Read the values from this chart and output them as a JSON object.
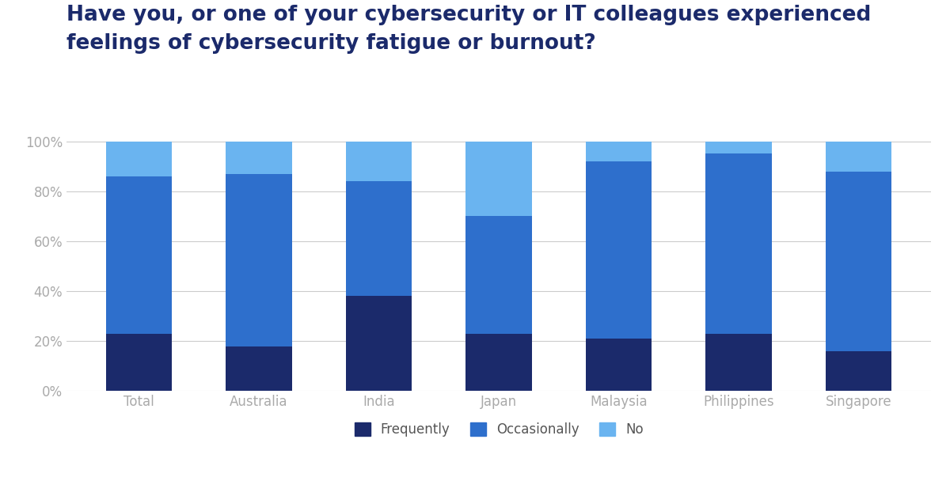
{
  "categories": [
    "Total",
    "Australia",
    "India",
    "Japan",
    "Malaysia",
    "Philippines",
    "Singapore"
  ],
  "frequently": [
    23,
    18,
    38,
    23,
    21,
    23,
    16
  ],
  "occasionally": [
    63,
    69,
    46,
    47,
    71,
    72,
    72
  ],
  "no": [
    14,
    13,
    16,
    30,
    8,
    5,
    12
  ],
  "color_frequently": "#1b2a6b",
  "color_occasionally": "#2e6fcc",
  "color_no": "#6ab4f0",
  "title_line1": "Have you, or one of your cybersecurity or IT colleagues experienced",
  "title_line2": "feelings of cybersecurity fatigue or burnout?",
  "title_color": "#1b2a6b",
  "title_fontsize": 19,
  "ylabel_ticks": [
    "0%",
    "20%",
    "40%",
    "60%",
    "80%",
    "100%"
  ],
  "ytick_vals": [
    0,
    20,
    40,
    60,
    80,
    100
  ],
  "legend_labels": [
    "Frequently",
    "Occasionally",
    "No"
  ],
  "background_color": "#ffffff",
  "bar_width": 0.55,
  "grid_color": "#cccccc",
  "tick_color": "#aaaaaa"
}
